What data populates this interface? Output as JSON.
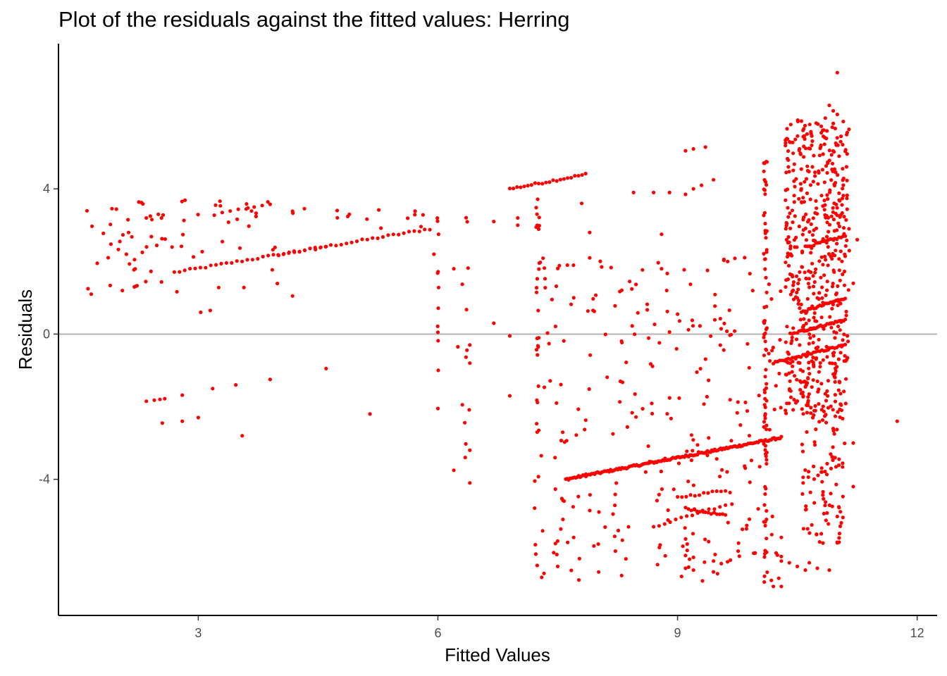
{
  "chart_data": {
    "type": "scatter",
    "title": "Plot of the residuals against the fitted values: Herring",
    "xlabel": "Fitted Values",
    "ylabel": "Residuals",
    "xlim": [
      1.25,
      12.25
    ],
    "ylim": [
      -7.75,
      8.0
    ],
    "x_ticks": [
      3,
      6,
      9,
      12
    ],
    "x_tick_labels": [
      "3",
      "6",
      "9",
      "12"
    ],
    "y_ticks": [
      -4,
      0,
      4
    ],
    "y_tick_labels": [
      "-4",
      "0",
      "4"
    ],
    "reference_line": {
      "y": 0,
      "color": "#b3b3b3"
    },
    "point_color": "#ff0000",
    "grid": false,
    "legend": "none",
    "segments": [
      {
        "x0": 2.7,
        "y0": 1.7,
        "x1": 5.9,
        "y1": 2.9,
        "n": 50
      },
      {
        "x0": 6.9,
        "y0": 4.0,
        "x1": 7.85,
        "y1": 4.4,
        "n": 22
      },
      {
        "x0": 7.6,
        "y0": -4.0,
        "x1": 10.3,
        "y1": -2.85,
        "n": 150
      },
      {
        "x0": 10.2,
        "y0": -0.8,
        "x1": 11.1,
        "y1": -0.3,
        "n": 35
      },
      {
        "x0": 10.5,
        "y0": 0.05,
        "x1": 11.1,
        "y1": 0.4,
        "n": 30
      },
      {
        "x0": 10.55,
        "y0": 0.6,
        "x1": 11.1,
        "y1": 1.0,
        "n": 25
      },
      {
        "x0": 10.6,
        "y0": 2.4,
        "x1": 11.1,
        "y1": 2.7,
        "n": 20
      },
      {
        "x0": 9.1,
        "y0": -4.8,
        "x1": 9.6,
        "y1": -5.0,
        "n": 15
      },
      {
        "x0": 9.0,
        "y0": -4.5,
        "x1": 9.6,
        "y1": -4.3,
        "n": 12
      },
      {
        "x0": 3.2,
        "y0": 3.3,
        "x1": 3.9,
        "y1": 3.6,
        "n": 8
      },
      {
        "x0": 4.0,
        "y0": 2.2,
        "x1": 4.6,
        "y1": 2.4,
        "n": 10
      },
      {
        "x0": 8.7,
        "y0": -5.3,
        "x1": 9.6,
        "y1": -4.7,
        "n": 14
      }
    ],
    "vertical_bands": [
      {
        "x": 10.1,
        "ymin": -6.9,
        "ymax": 5.2,
        "n": 80,
        "jitter": 0.02
      },
      {
        "x": 7.25,
        "ymin": -4.0,
        "ymax": 3.8,
        "n": 25,
        "jitter": 0.02
      },
      {
        "x": 6.0,
        "ymin": -2.1,
        "ymax": 3.3,
        "n": 10,
        "jitter": 0.01
      },
      {
        "x": 6.35,
        "ymin": -4.1,
        "ymax": 3.8,
        "n": 12,
        "jitter": 0.05
      }
    ],
    "clusters": [
      {
        "xmin": 10.35,
        "xmax": 11.15,
        "ymin": -2.2,
        "ymax": 5.9,
        "n": 520
      },
      {
        "xmin": 10.55,
        "xmax": 11.1,
        "ymin": -5.8,
        "ymax": -2.0,
        "n": 90
      },
      {
        "xmin": 7.2,
        "xmax": 10.3,
        "ymin": -6.8,
        "ymax": 2.2,
        "n": 260
      },
      {
        "xmin": 1.6,
        "xmax": 4.0,
        "ymin": 1.1,
        "ymax": 3.7,
        "n": 60
      },
      {
        "xmin": 4.0,
        "xmax": 6.0,
        "ymin": 2.9,
        "ymax": 3.5,
        "n": 15
      }
    ],
    "points": [
      [
        1.62,
        1.25
      ],
      [
        1.66,
        1.1
      ],
      [
        1.67,
        2.97
      ],
      [
        1.9,
        3.02
      ],
      [
        2.0,
        2.33
      ],
      [
        2.05,
        1.2
      ],
      [
        2.1,
        2.2
      ],
      [
        2.12,
        3.15
      ],
      [
        2.2,
        1.3
      ],
      [
        2.22,
        1.32
      ],
      [
        2.3,
        2.25
      ],
      [
        2.35,
        3.2
      ],
      [
        2.35,
        -1.85
      ],
      [
        2.4,
        3.25
      ],
      [
        2.45,
        -1.82
      ],
      [
        2.5,
        3.3
      ],
      [
        2.52,
        -1.8
      ],
      [
        2.55,
        -2.45
      ],
      [
        2.56,
        3.28
      ],
      [
        2.58,
        -1.78
      ],
      [
        2.8,
        -1.68
      ],
      [
        2.8,
        -2.4
      ],
      [
        3.03,
        0.6
      ],
      [
        3.0,
        -2.3
      ],
      [
        3.15,
        0.65
      ],
      [
        3.18,
        -1.5
      ],
      [
        3.47,
        -1.4
      ],
      [
        3.55,
        -2.8
      ],
      [
        3.9,
        -1.25
      ],
      [
        4.18,
        1.05
      ],
      [
        4.6,
        -0.95
      ],
      [
        5.15,
        -2.2
      ],
      [
        6.0,
        0.05
      ],
      [
        5.95,
        2.2
      ],
      [
        6.0,
        -2.05
      ],
      [
        6.2,
        1.8
      ],
      [
        6.25,
        -0.35
      ],
      [
        6.4,
        -0.3
      ],
      [
        6.4,
        -0.8
      ],
      [
        6.4,
        -3.2
      ],
      [
        6.2,
        -3.75
      ],
      [
        6.4,
        -4.1
      ],
      [
        6.7,
        0.3
      ],
      [
        6.7,
        3.1
      ],
      [
        6.9,
        -0.05
      ],
      [
        6.9,
        -1.7
      ],
      [
        7.0,
        3.2
      ],
      [
        7.0,
        3.0
      ],
      [
        7.5,
        -5.7
      ],
      [
        7.5,
        -6.4
      ],
      [
        7.3,
        -6.7
      ],
      [
        7.22,
        -5.8
      ],
      [
        7.7,
        -5.6
      ],
      [
        7.8,
        3.6
      ],
      [
        7.9,
        2.8
      ],
      [
        7.9,
        2.1
      ],
      [
        8.05,
        1.85
      ],
      [
        8.4,
        1.45
      ],
      [
        8.45,
        3.9
      ],
      [
        8.7,
        3.9
      ],
      [
        8.8,
        1.8
      ],
      [
        8.8,
        2.75
      ],
      [
        9.0,
        0.55
      ],
      [
        8.9,
        3.9
      ],
      [
        8.75,
        -6.35
      ],
      [
        8.3,
        -6.65
      ],
      [
        9.1,
        5.05
      ],
      [
        9.2,
        5.1
      ],
      [
        9.35,
        5.15
      ],
      [
        9.1,
        3.85
      ],
      [
        9.2,
        4.0
      ],
      [
        9.3,
        4.1
      ],
      [
        9.45,
        4.25
      ],
      [
        9.1,
        -6.1
      ],
      [
        9.15,
        -6.2
      ],
      [
        9.2,
        -6.15
      ],
      [
        9.1,
        -6.45
      ],
      [
        9.2,
        -6.5
      ],
      [
        9.45,
        -6.55
      ],
      [
        9.5,
        -6.6
      ],
      [
        9.45,
        -6.25
      ],
      [
        10.2,
        -6.95
      ],
      [
        10.3,
        -6.95
      ],
      [
        10.3,
        -6.25
      ],
      [
        10.4,
        -6.3
      ],
      [
        10.3,
        -5.6
      ],
      [
        10.5,
        -6.4
      ],
      [
        10.6,
        -6.5
      ],
      [
        10.65,
        -6.3
      ],
      [
        10.75,
        -6.45
      ],
      [
        11.75,
        -2.4
      ],
      [
        11.0,
        7.2
      ],
      [
        10.9,
        6.3
      ],
      [
        10.95,
        6.15
      ],
      [
        11.0,
        6.05
      ],
      [
        10.85,
        5.95
      ],
      [
        10.95,
        5.8
      ],
      [
        10.7,
        4.2
      ],
      [
        10.55,
        4.0
      ],
      [
        11.0,
        -5.75
      ],
      [
        11.05,
        -5.2
      ],
      [
        10.8,
        -5.5
      ],
      [
        10.9,
        -6.5
      ],
      [
        11.2,
        -3.0
      ],
      [
        11.15,
        2.3
      ],
      [
        11.2,
        1.4
      ],
      [
        11.25,
        2.6
      ],
      [
        11.2,
        -4.2
      ]
    ]
  }
}
